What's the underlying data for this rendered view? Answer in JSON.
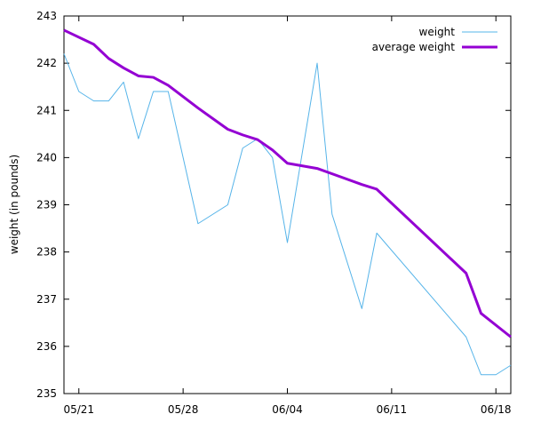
{
  "chart_data": {
    "type": "line",
    "ylabel": "weight (in pounds)",
    "xlabel": "",
    "ylim": [
      235,
      243
    ],
    "yticks": [
      235,
      236,
      237,
      238,
      239,
      240,
      241,
      242,
      243
    ],
    "xlim": [
      "05/20",
      "06/19"
    ],
    "xticks": [
      {
        "date": "05/21",
        "label": "05/21"
      },
      {
        "date": "05/28",
        "label": "05/28"
      },
      {
        "date": "06/04",
        "label": "06/04"
      },
      {
        "date": "06/11",
        "label": "06/11"
      },
      {
        "date": "06/18",
        "label": "06/18"
      }
    ],
    "legend_position": "top-right",
    "series": [
      {
        "name": "weight",
        "color": "#56b4e9",
        "points": [
          [
            "05/20",
            242.2
          ],
          [
            "05/21",
            241.4
          ],
          [
            "05/22",
            241.2
          ],
          [
            "05/23",
            241.2
          ],
          [
            "05/24",
            241.6
          ],
          [
            "05/25",
            240.4
          ],
          [
            "05/26",
            241.4
          ],
          [
            "05/27",
            241.4
          ],
          [
            "05/29",
            238.6
          ],
          [
            "05/31",
            239.0
          ],
          [
            "06/01",
            240.2
          ],
          [
            "06/02",
            240.4
          ],
          [
            "06/03",
            240.0
          ],
          [
            "06/04",
            238.2
          ],
          [
            "06/06",
            242.0
          ],
          [
            "06/07",
            238.8
          ],
          [
            "06/09",
            236.8
          ],
          [
            "06/10",
            238.4
          ],
          [
            "06/16",
            236.2
          ],
          [
            "06/17",
            235.4
          ],
          [
            "06/18",
            235.4
          ],
          [
            "06/19",
            235.6
          ]
        ]
      },
      {
        "name": "average weight",
        "color": "#9400d3",
        "points": [
          [
            "05/20",
            242.7
          ],
          [
            "05/22",
            242.4
          ],
          [
            "05/23",
            242.1
          ],
          [
            "05/24",
            241.9
          ],
          [
            "05/25",
            241.73
          ],
          [
            "05/26",
            241.7
          ],
          [
            "05/27",
            241.53
          ],
          [
            "05/29",
            241.05
          ],
          [
            "05/31",
            240.6
          ],
          [
            "06/01",
            240.48
          ],
          [
            "06/02",
            240.38
          ],
          [
            "06/03",
            240.16
          ],
          [
            "06/04",
            239.88
          ],
          [
            "06/06",
            239.77
          ],
          [
            "06/09",
            239.43
          ],
          [
            "06/10",
            239.33
          ],
          [
            "06/16",
            237.55
          ],
          [
            "06/17",
            236.7
          ],
          [
            "06/19",
            236.2
          ]
        ]
      }
    ]
  }
}
